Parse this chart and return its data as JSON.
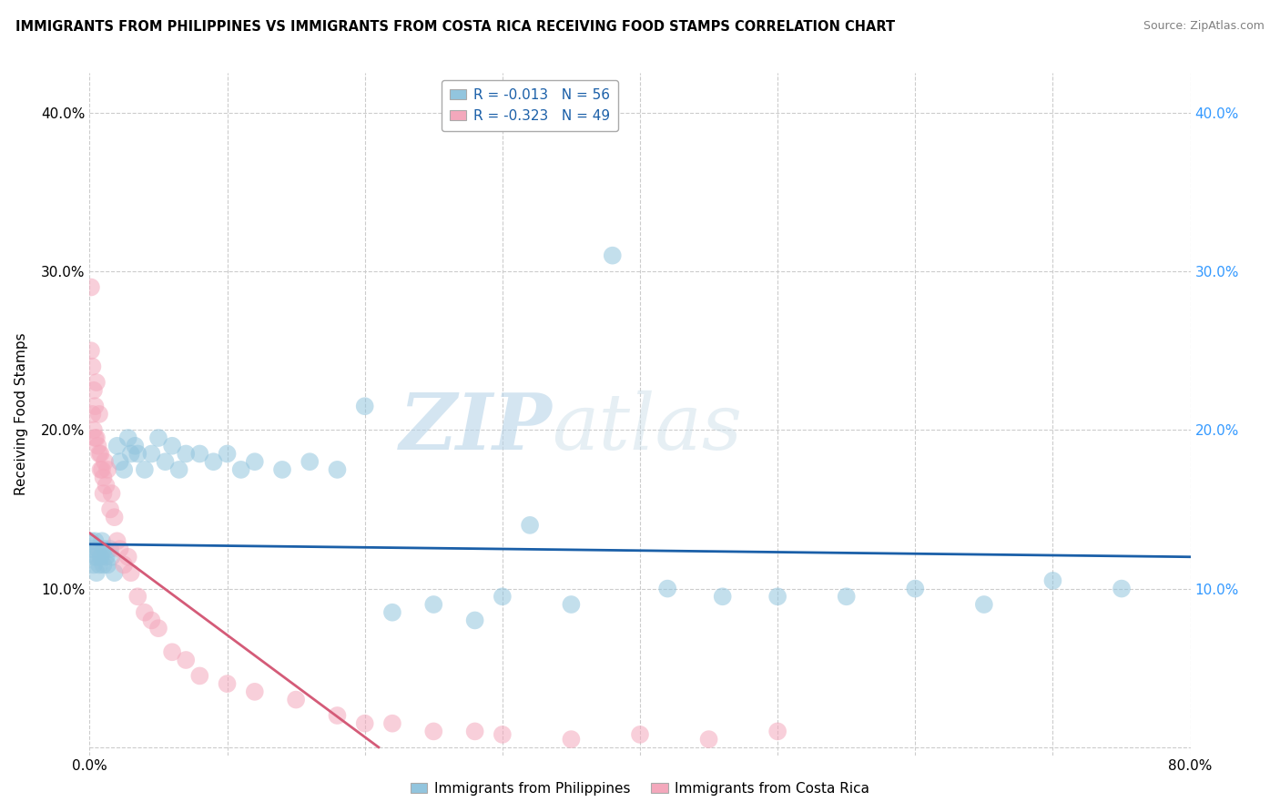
{
  "title": "IMMIGRANTS FROM PHILIPPINES VS IMMIGRANTS FROM COSTA RICA RECEIVING FOOD STAMPS CORRELATION CHART",
  "source": "Source: ZipAtlas.com",
  "ylabel": "Receiving Food Stamps",
  "ytick_values": [
    0.0,
    0.1,
    0.2,
    0.3,
    0.4
  ],
  "ytick_labels": [
    "",
    "10.0%",
    "20.0%",
    "30.0%",
    "40.0%"
  ],
  "xlim": [
    0.0,
    0.8
  ],
  "ylim": [
    -0.005,
    0.425
  ],
  "legend_r1": "R = -0.013   N = 56",
  "legend_r2": "R = -0.323   N = 49",
  "color_blue": "#92c5de",
  "color_pink": "#f4a8bc",
  "line_blue": "#1a5fa8",
  "line_pink": "#d45b78",
  "watermark_zip": "ZIP",
  "watermark_atlas": "atlas",
  "background_color": "#ffffff",
  "grid_color": "#cccccc",
  "philippines_x": [
    0.001,
    0.002,
    0.003,
    0.003,
    0.004,
    0.005,
    0.005,
    0.006,
    0.007,
    0.008,
    0.009,
    0.01,
    0.011,
    0.012,
    0.013,
    0.015,
    0.016,
    0.018,
    0.02,
    0.022,
    0.025,
    0.028,
    0.03,
    0.033,
    0.035,
    0.04,
    0.045,
    0.05,
    0.055,
    0.06,
    0.065,
    0.07,
    0.08,
    0.09,
    0.1,
    0.11,
    0.12,
    0.14,
    0.16,
    0.18,
    0.2,
    0.22,
    0.25,
    0.28,
    0.3,
    0.32,
    0.35,
    0.38,
    0.42,
    0.46,
    0.5,
    0.55,
    0.6,
    0.65,
    0.7,
    0.75
  ],
  "philippines_y": [
    0.13,
    0.125,
    0.12,
    0.115,
    0.13,
    0.12,
    0.11,
    0.125,
    0.115,
    0.12,
    0.13,
    0.115,
    0.125,
    0.12,
    0.115,
    0.125,
    0.12,
    0.11,
    0.19,
    0.18,
    0.175,
    0.195,
    0.185,
    0.19,
    0.185,
    0.175,
    0.185,
    0.195,
    0.18,
    0.19,
    0.175,
    0.185,
    0.185,
    0.18,
    0.185,
    0.175,
    0.18,
    0.175,
    0.18,
    0.175,
    0.215,
    0.085,
    0.09,
    0.08,
    0.095,
    0.14,
    0.09,
    0.31,
    0.1,
    0.095,
    0.095,
    0.095,
    0.1,
    0.09,
    0.105,
    0.1
  ],
  "costarica_x": [
    0.001,
    0.001,
    0.002,
    0.002,
    0.003,
    0.003,
    0.004,
    0.004,
    0.005,
    0.005,
    0.006,
    0.007,
    0.007,
    0.008,
    0.008,
    0.009,
    0.01,
    0.01,
    0.011,
    0.012,
    0.013,
    0.015,
    0.016,
    0.018,
    0.02,
    0.022,
    0.025,
    0.028,
    0.03,
    0.035,
    0.04,
    0.045,
    0.05,
    0.06,
    0.07,
    0.08,
    0.1,
    0.12,
    0.15,
    0.18,
    0.2,
    0.22,
    0.25,
    0.28,
    0.3,
    0.35,
    0.4,
    0.45,
    0.5
  ],
  "costarica_y": [
    0.29,
    0.25,
    0.24,
    0.21,
    0.225,
    0.2,
    0.215,
    0.195,
    0.23,
    0.195,
    0.19,
    0.185,
    0.21,
    0.175,
    0.185,
    0.175,
    0.17,
    0.16,
    0.18,
    0.165,
    0.175,
    0.15,
    0.16,
    0.145,
    0.13,
    0.125,
    0.115,
    0.12,
    0.11,
    0.095,
    0.085,
    0.08,
    0.075,
    0.06,
    0.055,
    0.045,
    0.04,
    0.035,
    0.03,
    0.02,
    0.015,
    0.015,
    0.01,
    0.01,
    0.008,
    0.005,
    0.008,
    0.005,
    0.01
  ],
  "blue_line_x0": 0.0,
  "blue_line_y0": 0.128,
  "blue_line_x1": 0.8,
  "blue_line_y1": 0.12,
  "pink_line_x0": 0.0,
  "pink_line_y0": 0.135,
  "pink_line_x1": 0.21,
  "pink_line_y1": 0.0
}
